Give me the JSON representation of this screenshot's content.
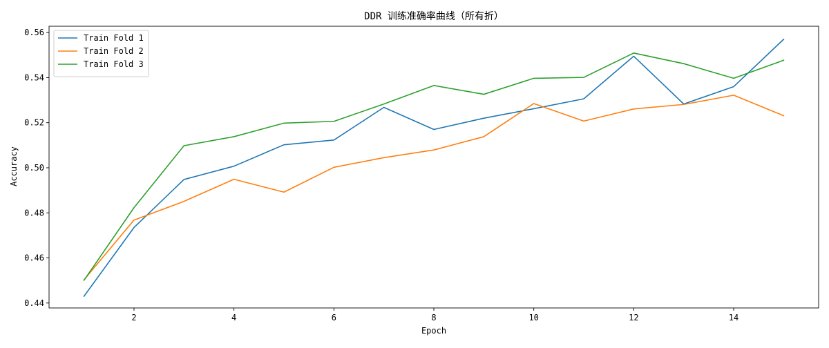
{
  "chart_data": {
    "type": "line",
    "title": "DDR 训练准确率曲线（所有折）",
    "xlabel": "Epoch",
    "ylabel": "Accuracy",
    "xlim": [
      0.3,
      15.7
    ],
    "ylim": [
      0.4378,
      0.5628
    ],
    "xticks": [
      2,
      4,
      6,
      8,
      10,
      12,
      14
    ],
    "yticks": [
      0.44,
      0.46,
      0.48,
      0.5,
      0.52,
      0.54,
      0.56
    ],
    "ytick_labels": [
      "0.44",
      "0.46",
      "0.48",
      "0.50",
      "0.52",
      "0.54",
      "0.56"
    ],
    "grid": false,
    "legend_position": "upper-left",
    "x": [
      1,
      2,
      3,
      4,
      5,
      6,
      7,
      8,
      9,
      10,
      11,
      12,
      13,
      14,
      15
    ],
    "series": [
      {
        "name": "Train Fold 1",
        "color": "#1f77b4",
        "values": [
          0.443,
          0.4735,
          0.4948,
          0.5007,
          0.5102,
          0.5123,
          0.5268,
          0.517,
          0.522,
          0.5262,
          0.5306,
          0.5495,
          0.5283,
          0.536,
          0.557
        ]
      },
      {
        "name": "Train Fold 2",
        "color": "#ff7f0e",
        "values": [
          0.4503,
          0.4768,
          0.4851,
          0.4949,
          0.4892,
          0.5002,
          0.5045,
          0.5079,
          0.5138,
          0.5285,
          0.5207,
          0.5261,
          0.5281,
          0.5322,
          0.5231
        ]
      },
      {
        "name": "Train Fold 3",
        "color": "#2ca02c",
        "values": [
          0.4501,
          0.4823,
          0.5098,
          0.5138,
          0.5198,
          0.5206,
          0.5283,
          0.5365,
          0.5326,
          0.5397,
          0.5401,
          0.5509,
          0.5462,
          0.5397,
          0.5477
        ]
      }
    ]
  }
}
